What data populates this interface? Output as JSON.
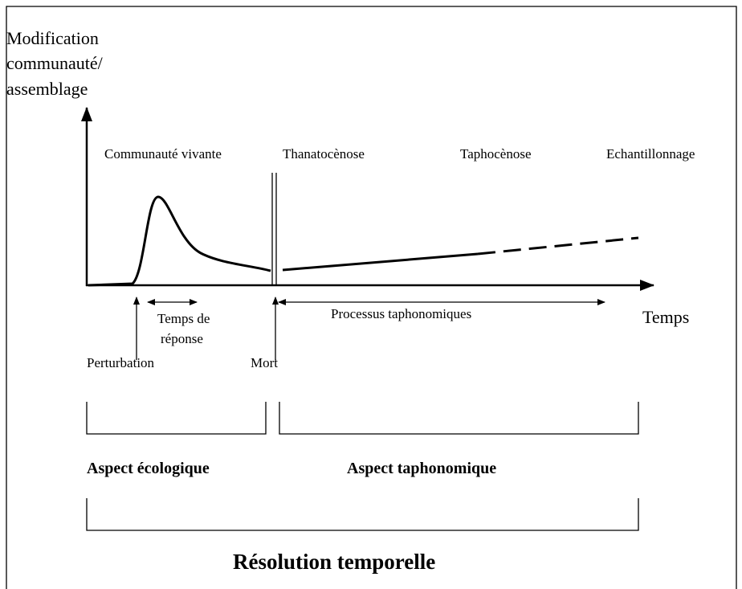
{
  "axis_label": [
    "Modification",
    "communauté/",
    "assemblage"
  ],
  "x_axis_label": "Temps",
  "phases": [
    "Communauté vivante",
    "Thanatocènose",
    "Taphocènose",
    "Echantillonnage"
  ],
  "response_time": [
    "Temps de",
    "réponse"
  ],
  "processes": "Processus taphonomiques",
  "events": [
    "Perturbation",
    "Mort"
  ],
  "aspects": [
    "Aspect écologique",
    "Aspect taphonomique"
  ],
  "resolution": "Résolution temporelle"
}
